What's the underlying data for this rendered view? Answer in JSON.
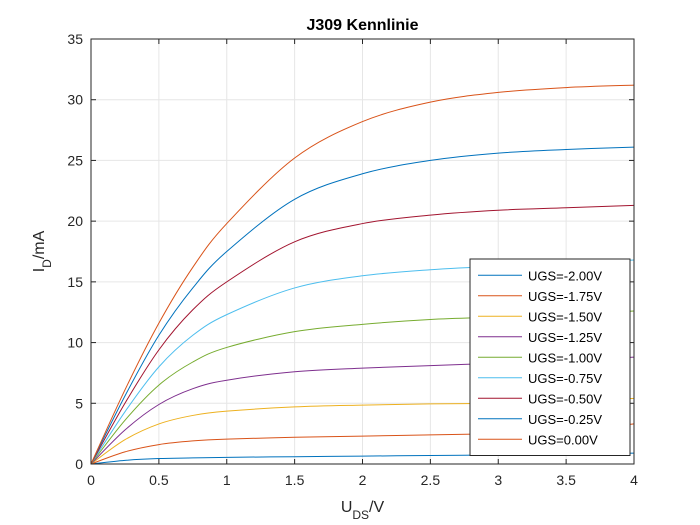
{
  "chart_data": {
    "type": "line",
    "title": "J309 Kennlinie",
    "xlabel_main": "U",
    "xlabel_sub": "DS",
    "xlabel_unit": "/V",
    "ylabel_main": "I",
    "ylabel_sub": "D",
    "ylabel_unit": "/mA",
    "xlim": [
      0,
      4
    ],
    "ylim": [
      0,
      35
    ],
    "xticks": [
      0,
      0.5,
      1,
      1.5,
      2,
      2.5,
      3,
      3.5,
      4
    ],
    "xtick_labels": [
      "0",
      "0.5",
      "1",
      "1.5",
      "2",
      "2.5",
      "3",
      "3.5",
      "4"
    ],
    "yticks": [
      0,
      5,
      10,
      15,
      20,
      25,
      30,
      35
    ],
    "ytick_labels": [
      "0",
      "5",
      "10",
      "15",
      "20",
      "25",
      "30",
      "35"
    ],
    "grid": true,
    "legend_position": "right",
    "x": [
      0,
      0.25,
      0.5,
      0.75,
      1,
      1.5,
      2,
      2.5,
      3,
      3.5,
      4
    ],
    "series": [
      {
        "name": "UGS=-2.00V",
        "color": "#0072BD",
        "values": [
          0,
          0.3,
          0.45,
          0.5,
          0.55,
          0.6,
          0.65,
          0.7,
          0.75,
          0.8,
          0.9
        ]
      },
      {
        "name": "UGS=-1.75V",
        "color": "#D95319",
        "values": [
          0,
          1.0,
          1.6,
          1.9,
          2.05,
          2.2,
          2.3,
          2.4,
          2.5,
          2.7,
          3.3
        ]
      },
      {
        "name": "UGS=-1.50V",
        "color": "#EDB120",
        "values": [
          0,
          2.0,
          3.3,
          4.0,
          4.35,
          4.7,
          4.85,
          4.95,
          5.0,
          5.1,
          5.4
        ]
      },
      {
        "name": "UGS=-1.25V",
        "color": "#7E2F8E",
        "values": [
          0,
          2.8,
          4.9,
          6.2,
          6.9,
          7.6,
          7.9,
          8.1,
          8.3,
          8.5,
          8.8
        ]
      },
      {
        "name": "UGS=-1.00V",
        "color": "#77AC30",
        "values": [
          0,
          3.6,
          6.5,
          8.4,
          9.6,
          10.9,
          11.5,
          11.9,
          12.1,
          12.3,
          12.6
        ]
      },
      {
        "name": "UGS=-0.75V",
        "color": "#4DBEEE",
        "values": [
          0,
          4.3,
          8.0,
          10.6,
          12.3,
          14.5,
          15.5,
          16.0,
          16.3,
          16.5,
          16.8
        ]
      },
      {
        "name": "UGS=-0.50V",
        "color": "#A2142F",
        "values": [
          0,
          5.0,
          9.4,
          12.7,
          15.0,
          18.3,
          19.8,
          20.5,
          20.9,
          21.1,
          21.3
        ]
      },
      {
        "name": "UGS=-0.25V",
        "color": "#0072BD",
        "values": [
          0,
          5.6,
          10.6,
          14.5,
          17.5,
          21.8,
          23.9,
          25.0,
          25.6,
          25.9,
          26.1
        ]
      },
      {
        "name": "UGS=0.00V",
        "color": "#D95319",
        "values": [
          0,
          6.1,
          11.6,
          16.2,
          19.8,
          25.2,
          28.2,
          29.8,
          30.6,
          31.0,
          31.2
        ]
      }
    ]
  }
}
